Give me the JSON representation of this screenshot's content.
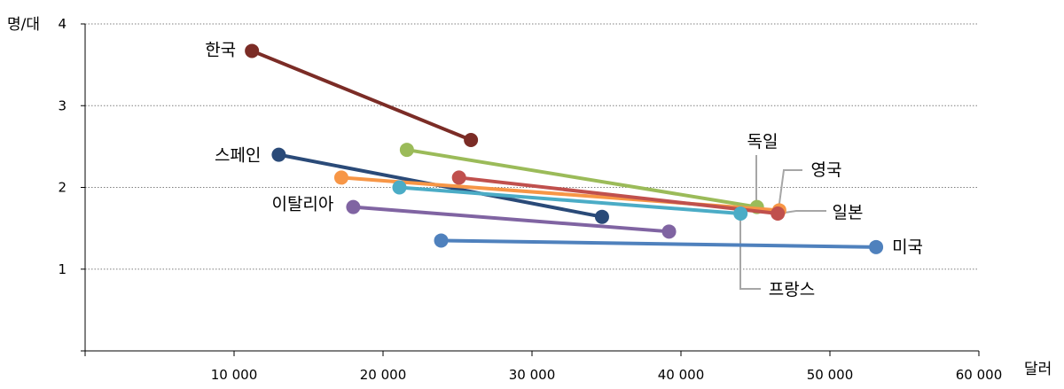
{
  "chart_data": {
    "type": "scatter",
    "title": "",
    "ylabel": "명/대",
    "xlabel": "달러",
    "xlim": [
      0,
      60000
    ],
    "ylim": [
      0,
      4
    ],
    "x_ticks": [
      {
        "value": 10000,
        "label": "10 000"
      },
      {
        "value": 20000,
        "label": "20 000"
      },
      {
        "value": 30000,
        "label": "30 000"
      },
      {
        "value": 40000,
        "label": "40 000"
      },
      {
        "value": 50000,
        "label": "50 000"
      },
      {
        "value": 60000,
        "label": "60 000"
      }
    ],
    "y_ticks": [
      {
        "value": 1,
        "label": "1"
      },
      {
        "value": 2,
        "label": "2"
      },
      {
        "value": 3,
        "label": "3"
      },
      {
        "value": 4,
        "label": "4"
      }
    ],
    "grid": "horizontal-dotted",
    "series": [
      {
        "name": "한국",
        "color": "#7b2c26",
        "points": [
          {
            "x": 11200,
            "y": 3.67
          },
          {
            "x": 25900,
            "y": 2.58
          }
        ]
      },
      {
        "name": "스페인",
        "color": "#2a4a78",
        "points": [
          {
            "x": 13000,
            "y": 2.4
          },
          {
            "x": 34700,
            "y": 1.64
          }
        ]
      },
      {
        "name": "이탈리아",
        "color": "#8064a2",
        "points": [
          {
            "x": 18000,
            "y": 1.76
          },
          {
            "x": 39200,
            "y": 1.46
          }
        ]
      },
      {
        "name": "독일",
        "color": "#9bbb59",
        "points": [
          {
            "x": 21600,
            "y": 2.46
          },
          {
            "x": 45100,
            "y": 1.76
          }
        ]
      },
      {
        "name": "영국",
        "color": "#f79646",
        "points": [
          {
            "x": 17200,
            "y": 2.12
          },
          {
            "x": 46600,
            "y": 1.72
          }
        ]
      },
      {
        "name": "일본",
        "color": "#c0504d",
        "points": [
          {
            "x": 25100,
            "y": 2.12
          },
          {
            "x": 46500,
            "y": 1.68
          }
        ]
      },
      {
        "name": "프랑스",
        "color": "#4bacc6",
        "points": [
          {
            "x": 21100,
            "y": 2.0
          },
          {
            "x": 44000,
            "y": 1.68
          }
        ]
      },
      {
        "name": "미국",
        "color": "#4f81bd",
        "points": [
          {
            "x": 23900,
            "y": 1.35
          },
          {
            "x": 53100,
            "y": 1.27
          }
        ]
      }
    ]
  }
}
